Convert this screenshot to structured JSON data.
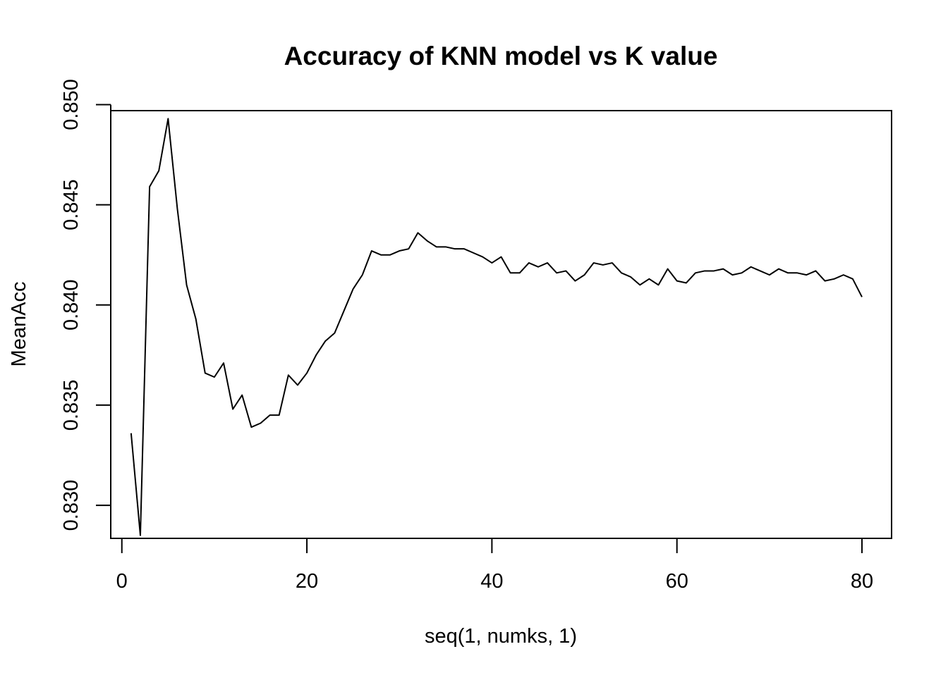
{
  "chart_data": {
    "type": "line",
    "title": "Accuracy of KNN model vs K value",
    "xlabel": "seq(1, numks, 1)",
    "ylabel": "MeanAcc",
    "xlim": [
      -1.2,
      83.2
    ],
    "ylim": [
      0.82835,
      0.8497
    ],
    "xticks": [
      0,
      20,
      40,
      60,
      80
    ],
    "xtick_labels": [
      "0",
      "20",
      "40",
      "60",
      "80"
    ],
    "yticks": [
      0.83,
      0.835,
      0.84,
      0.845,
      0.85
    ],
    "ytick_labels": [
      "0.830",
      "0.835",
      "0.840",
      "0.845",
      "0.850"
    ],
    "grid": false,
    "legend": false,
    "line_color": "#000000",
    "series": [
      {
        "x": [
          1,
          2,
          3,
          4,
          5,
          6,
          7,
          8,
          9,
          10,
          11,
          12,
          13,
          14,
          15,
          16,
          17,
          18,
          19,
          20,
          21,
          22,
          23,
          24,
          25,
          26,
          27,
          28,
          29,
          30,
          31,
          32,
          33,
          34,
          35,
          36,
          37,
          38,
          39,
          40,
          41,
          42,
          43,
          44,
          45,
          46,
          47,
          48,
          49,
          50,
          51,
          52,
          53,
          54,
          55,
          56,
          57,
          58,
          59,
          60,
          61,
          62,
          63,
          64,
          65,
          66,
          67,
          68,
          69,
          70,
          71,
          72,
          73,
          74,
          75,
          76,
          77,
          78,
          79,
          80
        ],
        "values": [
          0.8336,
          0.8285,
          0.8459,
          0.8467,
          0.8493,
          0.8448,
          0.841,
          0.8393,
          0.8366,
          0.8364,
          0.8371,
          0.8348,
          0.8355,
          0.8339,
          0.8341,
          0.8345,
          0.8345,
          0.8365,
          0.836,
          0.8366,
          0.8375,
          0.8382,
          0.8386,
          0.8397,
          0.8408,
          0.8415,
          0.8427,
          0.8425,
          0.8425,
          0.8427,
          0.8428,
          0.8436,
          0.8432,
          0.8429,
          0.8429,
          0.8428,
          0.8428,
          0.8426,
          0.8424,
          0.8421,
          0.8424,
          0.8416,
          0.8416,
          0.8421,
          0.8419,
          0.8421,
          0.8416,
          0.8417,
          0.8412,
          0.8415,
          0.8421,
          0.842,
          0.8421,
          0.8416,
          0.8414,
          0.841,
          0.8413,
          0.841,
          0.8418,
          0.8412,
          0.8411,
          0.8416,
          0.8417,
          0.8417,
          0.8418,
          0.8415,
          0.8416,
          0.8419,
          0.8417,
          0.8415,
          0.8418,
          0.8416,
          0.8416,
          0.8415,
          0.8417,
          0.8412,
          0.8413,
          0.8415,
          0.8413,
          0.8404
        ]
      }
    ]
  }
}
